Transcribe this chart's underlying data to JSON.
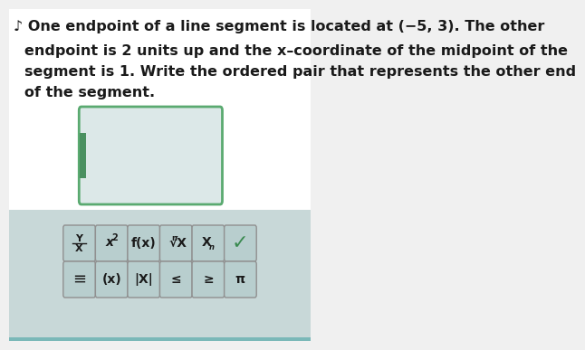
{
  "bg_color": "#c8d8d8",
  "text_color": "#1a1a1a",
  "line1": "♪ One endpoint of a line segment is located at (−5, 3). The other",
  "line2": "endpoint is 2 units up and the x–coordinate of the midpoint of the",
  "line3": "segment is 1. Write the ordered pair that represents the other end",
  "line4": "of the segment.",
  "input_box_color": "#dce8e8",
  "input_box_border": "#5aaa70",
  "input_tab_color": "#4a9060",
  "button_bg": "#b8cece",
  "button_border": "#909090",
  "checkmark_color": "#3a8a50",
  "font_size_text": 11.5,
  "font_size_btn": 10,
  "page_bg": "#f0f0f0"
}
